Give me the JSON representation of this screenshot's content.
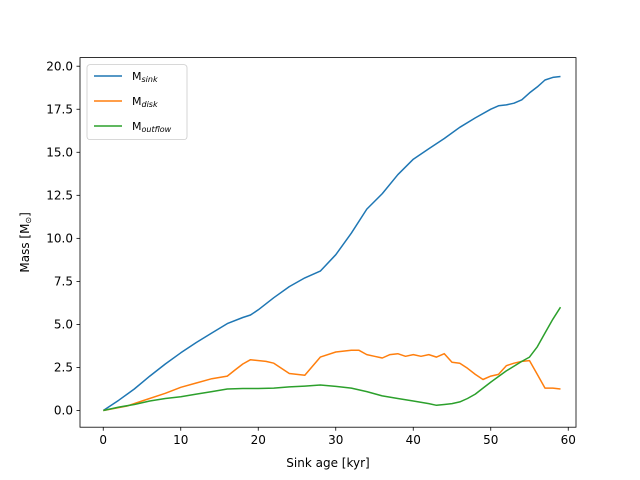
{
  "chart_data": {
    "type": "line",
    "xlabel": "Sink age [kyr]",
    "ylabel_main": "Mass [M",
    "ylabel_sub": "⊙",
    "ylabel_end": "]",
    "xlim": [
      -3,
      61
    ],
    "ylim": [
      -0.97,
      20.5
    ],
    "xticks": [
      0,
      10,
      20,
      30,
      40,
      50,
      60
    ],
    "yticks": [
      0.0,
      2.5,
      5.0,
      7.5,
      10.0,
      12.5,
      15.0,
      17.5,
      20.0
    ],
    "ytick_labels": [
      "0.0",
      "2.5",
      "5.0",
      "7.5",
      "10.0",
      "12.5",
      "15.0",
      "17.5",
      "20.0"
    ],
    "grid": false,
    "legend_position": "top-left",
    "series": [
      {
        "name_main": "M",
        "name_sub": "sink",
        "color": "#1f77b4",
        "x": [
          0,
          2,
          4,
          6,
          8,
          10,
          12,
          14,
          16,
          18,
          19,
          20,
          22,
          24,
          26,
          28,
          30,
          32,
          34,
          36,
          38,
          40,
          42,
          44,
          46,
          48,
          50,
          51,
          52,
          53,
          54,
          55,
          56,
          57,
          58,
          59
        ],
        "y": [
          0.0,
          0.6,
          1.25,
          2.0,
          2.7,
          3.35,
          3.95,
          4.5,
          5.05,
          5.4,
          5.55,
          5.85,
          6.55,
          7.2,
          7.7,
          8.1,
          9.05,
          10.3,
          11.7,
          12.6,
          13.7,
          14.6,
          15.2,
          15.8,
          16.45,
          17.0,
          17.5,
          17.7,
          17.75,
          17.85,
          18.05,
          18.45,
          18.8,
          19.2,
          19.35,
          19.4
        ]
      },
      {
        "name_main": "M",
        "name_sub": "disk",
        "color": "#ff7f0e",
        "x": [
          0,
          3,
          5,
          8,
          10,
          12,
          14,
          16,
          17,
          18,
          19,
          21,
          22,
          24,
          26,
          28,
          30,
          32,
          33,
          34,
          35,
          36,
          37,
          38,
          39,
          40,
          41,
          42,
          43,
          44,
          45,
          46,
          47,
          48,
          49,
          50,
          51,
          52,
          53,
          54,
          55,
          56,
          57,
          58,
          59
        ],
        "y": [
          0.0,
          0.25,
          0.55,
          1.0,
          1.35,
          1.6,
          1.85,
          2.0,
          2.35,
          2.7,
          2.95,
          2.85,
          2.75,
          2.15,
          2.05,
          3.1,
          3.4,
          3.5,
          3.5,
          3.25,
          3.15,
          3.05,
          3.25,
          3.3,
          3.15,
          3.25,
          3.15,
          3.25,
          3.1,
          3.3,
          2.8,
          2.75,
          2.45,
          2.1,
          1.8,
          2.0,
          2.1,
          2.6,
          2.75,
          2.85,
          2.9,
          2.1,
          1.3,
          1.3,
          1.25
        ]
      },
      {
        "name_main": "M",
        "name_sub": "outflow",
        "color": "#2ca02c",
        "x": [
          0,
          2,
          4,
          6,
          8,
          10,
          12,
          14,
          16,
          18,
          20,
          22,
          24,
          26,
          28,
          30,
          32,
          34,
          36,
          38,
          40,
          42,
          43,
          44,
          45,
          46,
          47,
          48,
          49,
          50,
          52,
          54,
          55,
          56,
          57,
          58,
          59
        ],
        "y": [
          0.0,
          0.2,
          0.35,
          0.55,
          0.7,
          0.8,
          0.95,
          1.1,
          1.25,
          1.28,
          1.28,
          1.3,
          1.37,
          1.42,
          1.48,
          1.4,
          1.3,
          1.1,
          0.85,
          0.7,
          0.55,
          0.4,
          0.3,
          0.35,
          0.4,
          0.5,
          0.7,
          0.95,
          1.3,
          1.65,
          2.3,
          2.85,
          3.1,
          3.7,
          4.5,
          5.3,
          6.0
        ]
      }
    ]
  }
}
